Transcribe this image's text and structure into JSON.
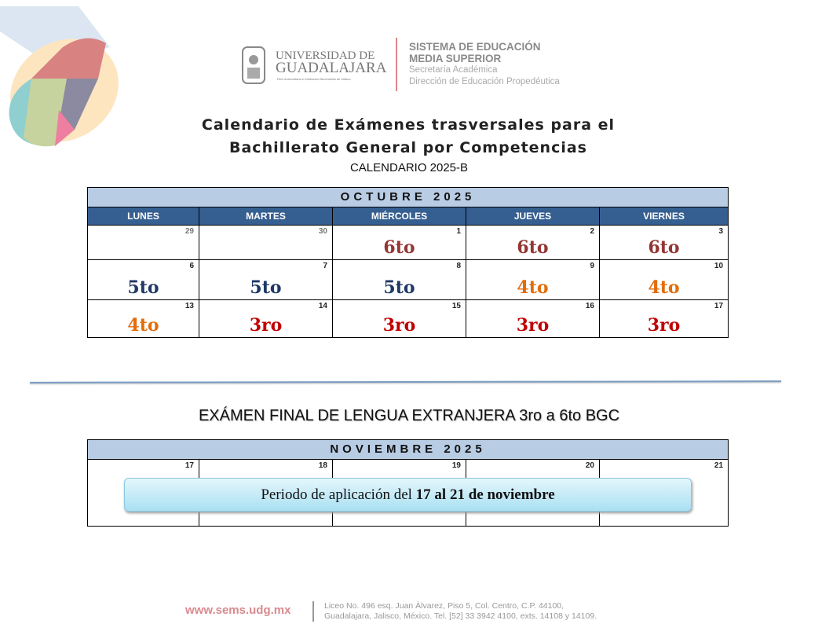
{
  "header": {
    "udg_line1": "UNIVERSIDAD DE",
    "udg_line2": "GUADALAJARA",
    "udg_sub": "Red Universitaria e Institución Benemérita de Jalisco",
    "sems_line1": "SISTEMA DE EDUCACIÓN",
    "sems_line2": "MEDIA SUPERIOR",
    "sems_line3": "Secretaría Académica",
    "sems_line4": "Dirección de Educación Propedéutica"
  },
  "title": {
    "line1": "Calendario de Exámenes trasversales para el",
    "line2": "Bachillerato General por Competencias",
    "subtitle": "CALENDARIO 2025-B"
  },
  "october": {
    "month": "OCTUBRE 2025",
    "weekdays": [
      "LUNES",
      "MARTES",
      "MIÉRCOLES",
      "JUEVES",
      "VIERNES"
    ],
    "weeks": [
      [
        {
          "day": "29",
          "grade": "",
          "muted": true
        },
        {
          "day": "30",
          "grade": "",
          "muted": true
        },
        {
          "day": "1",
          "grade": "6to"
        },
        {
          "day": "2",
          "grade": "6to"
        },
        {
          "day": "3",
          "grade": "6to"
        }
      ],
      [
        {
          "day": "6",
          "grade": "5to"
        },
        {
          "day": "7",
          "grade": "5to"
        },
        {
          "day": "8",
          "grade": "5to"
        },
        {
          "day": "9",
          "grade": "4to"
        },
        {
          "day": "10",
          "grade": "4to"
        }
      ],
      [
        {
          "day": "13",
          "grade": "4to"
        },
        {
          "day": "14",
          "grade": "3ro"
        },
        {
          "day": "15",
          "grade": "3ro"
        },
        {
          "day": "16",
          "grade": "3ro"
        },
        {
          "day": "17",
          "grade": "3ro"
        }
      ]
    ]
  },
  "grade_colors": {
    "6to": "#943634",
    "5to": "#1f3864",
    "4to": "#e36c09",
    "3ro": "#c00000"
  },
  "final_exam": {
    "title": "EXÁMEN FINAL DE LENGUA EXTRANJERA 3ro a 6to BGC"
  },
  "november": {
    "month": "NOVIEMBRE 2025",
    "days": [
      "17",
      "18",
      "19",
      "20",
      "21"
    ],
    "banner_prefix": "Periodo de aplicación  del ",
    "banner_bold": "17 al 21 de noviembre"
  },
  "footer": {
    "url": "www.sems.udg.mx",
    "address1": "Liceo No. 496 esq. Juan Álvarez, Piso 5, Col. Centro, C.P. 44100,",
    "address2": "Guadalajara, Jalisco, México. Tel. [52] 33 3942 4100, exts. 14108 y 14109."
  }
}
